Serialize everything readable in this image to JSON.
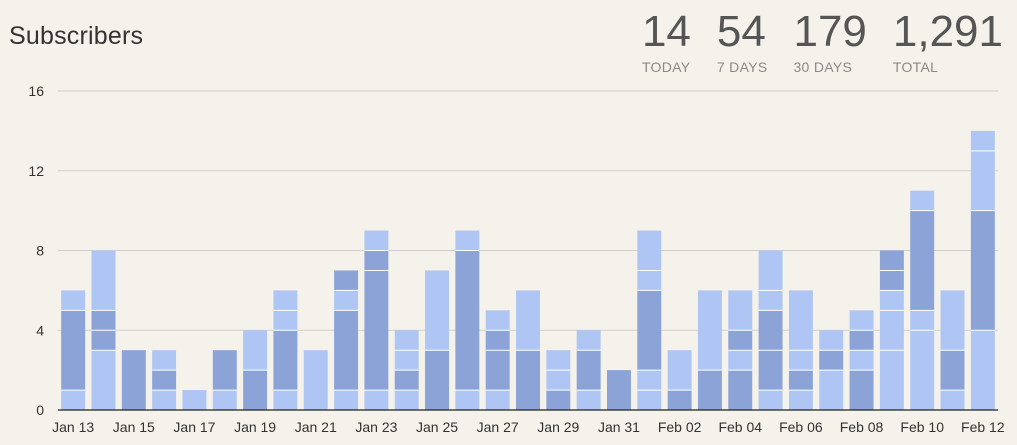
{
  "header": {
    "title": "Subscribers"
  },
  "stats": [
    {
      "value": "14",
      "label": "TODAY"
    },
    {
      "value": "54",
      "label": "7 DAYS"
    },
    {
      "value": "179",
      "label": "30 DAYS"
    },
    {
      "value": "1,291",
      "label": "TOTAL"
    }
  ],
  "colors": {
    "background": "#f5f2eb",
    "series_dark": "#8ba3d6",
    "series_light": "#afc6f4",
    "grid": "#cfcfcf",
    "axis": "#222222"
  },
  "chart_data": {
    "type": "bar",
    "stacked": true,
    "title": "Subscribers",
    "xlabel": "",
    "ylabel": "",
    "ylim": [
      0,
      16
    ],
    "yticks": [
      0,
      4,
      8,
      12,
      16
    ],
    "grid": true,
    "categories": [
      "Jan 13",
      "Jan 14",
      "Jan 15",
      "Jan 16",
      "Jan 17",
      "Jan 18",
      "Jan 19",
      "Jan 20",
      "Jan 21",
      "Jan 22",
      "Jan 23",
      "Jan 24",
      "Jan 25",
      "Jan 26",
      "Jan 27",
      "Jan 28",
      "Jan 29",
      "Jan 30",
      "Jan 31",
      "Feb 01",
      "Feb 02",
      "Feb 03",
      "Feb 04",
      "Feb 05",
      "Feb 06",
      "Feb 07",
      "Feb 08",
      "Feb 09",
      "Feb 10",
      "Feb 11",
      "Feb 12"
    ],
    "xtick_labels": [
      "Jan 13",
      "",
      "Jan 15",
      "",
      "Jan 17",
      "",
      "Jan 19",
      "",
      "Jan 21",
      "",
      "Jan 23",
      "",
      "Jan 25",
      "",
      "Jan 27",
      "",
      "Jan 29",
      "",
      "Jan 31",
      "",
      "Feb 02",
      "",
      "Feb 04",
      "",
      "Feb 06",
      "",
      "Feb 08",
      "",
      "Feb 10",
      "",
      "Feb 12"
    ],
    "segments": [
      [
        1,
        4,
        1
      ],
      [
        3,
        1,
        1,
        3
      ],
      [
        3
      ],
      [
        1,
        1,
        1
      ],
      [
        1
      ],
      [
        1,
        2
      ],
      [
        2,
        2
      ],
      [
        1,
        3,
        1,
        1
      ],
      [
        3
      ],
      [
        1,
        4,
        1,
        1
      ],
      [
        1,
        6,
        1,
        1
      ],
      [
        1,
        1,
        1,
        1
      ],
      [
        3,
        4
      ],
      [
        1,
        7,
        1
      ],
      [
        1,
        2,
        1,
        1
      ],
      [
        3,
        3
      ],
      [
        1,
        1,
        1
      ],
      [
        1,
        2,
        1
      ],
      [
        2
      ],
      [
        1,
        1,
        4,
        1,
        2
      ],
      [
        1,
        2
      ],
      [
        2,
        4
      ],
      [
        2,
        1,
        1,
        2
      ],
      [
        1,
        2,
        2,
        1,
        2
      ],
      [
        1,
        1,
        1,
        3
      ],
      [
        2,
        1,
        1
      ],
      [
        2,
        1,
        1,
        1
      ],
      [
        3,
        2,
        1,
        1,
        1
      ],
      [
        4,
        1,
        5,
        1
      ],
      [
        1,
        2,
        3
      ],
      [
        4,
        6,
        3,
        1
      ]
    ],
    "segment_colors": [
      [
        "light",
        "dark",
        "light"
      ],
      [
        "light",
        "dark",
        "dark",
        "light"
      ],
      [
        "dark"
      ],
      [
        "light",
        "dark",
        "light"
      ],
      [
        "light"
      ],
      [
        "light",
        "dark"
      ],
      [
        "dark",
        "light"
      ],
      [
        "light",
        "dark",
        "light",
        "light"
      ],
      [
        "light"
      ],
      [
        "light",
        "dark",
        "light",
        "dark"
      ],
      [
        "light",
        "dark",
        "dark",
        "light"
      ],
      [
        "light",
        "dark",
        "light",
        "light"
      ],
      [
        "dark",
        "light"
      ],
      [
        "light",
        "dark",
        "light"
      ],
      [
        "light",
        "dark",
        "dark",
        "light"
      ],
      [
        "dark",
        "light"
      ],
      [
        "dark",
        "light",
        "light"
      ],
      [
        "light",
        "dark",
        "light"
      ],
      [
        "dark"
      ],
      [
        "light",
        "light",
        "dark",
        "light",
        "light"
      ],
      [
        "dark",
        "light"
      ],
      [
        "dark",
        "light"
      ],
      [
        "dark",
        "light",
        "dark",
        "light"
      ],
      [
        "light",
        "dark",
        "dark",
        "light",
        "light"
      ],
      [
        "light",
        "dark",
        "light",
        "light"
      ],
      [
        "light",
        "dark",
        "light"
      ],
      [
        "dark",
        "light",
        "dark",
        "light"
      ],
      [
        "light",
        "light",
        "light",
        "dark",
        "dark"
      ],
      [
        "light",
        "light",
        "dark",
        "light"
      ],
      [
        "light",
        "dark",
        "light"
      ],
      [
        "light",
        "dark",
        "light",
        "light"
      ]
    ],
    "totals": [
      6,
      8,
      3,
      3,
      1,
      3,
      4,
      6,
      3,
      7,
      9,
      4,
      7,
      9,
      5,
      6,
      3,
      4,
      2,
      9,
      3,
      6,
      6,
      8,
      6,
      4,
      5,
      8,
      11,
      6,
      14
    ]
  }
}
